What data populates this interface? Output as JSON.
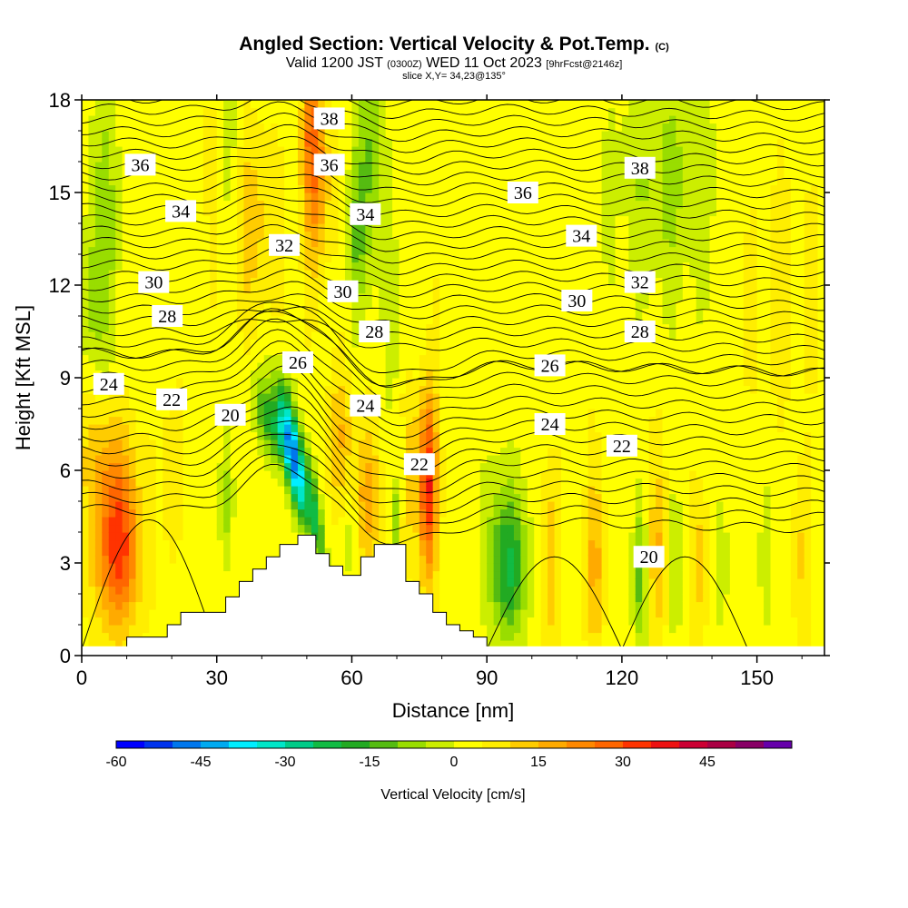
{
  "header": {
    "title_main": "Angled Section: Vertical Velocity & Pot.Temp.",
    "title_unit": "(C)",
    "subtitle_a": "Valid 1200 JST",
    "subtitle_b": "(0300Z)",
    "subtitle_c": "WED 11 Oct 2023",
    "subtitle_d": "[9hrFcst@2146z]",
    "slice": "slice X,Y= 34,23@135°"
  },
  "chart_data": {
    "type": "heatmap",
    "title": "Angled Section: Vertical Velocity & Pot.Temp. (C)",
    "xlabel": "Distance [nm]",
    "ylabel": "Height [Kft MSL]",
    "xlim": [
      0,
      165
    ],
    "ylim": [
      0,
      18
    ],
    "x_ticks": [
      0,
      30,
      60,
      90,
      120,
      150
    ],
    "y_ticks": [
      0,
      3,
      6,
      9,
      12,
      15,
      18
    ],
    "grid": false,
    "colorbar": {
      "label": "Vertical Velocity [cm/s]",
      "min": -60,
      "max": 55,
      "step": 5,
      "ticks": [
        -60,
        -45,
        -30,
        -15,
        0,
        15,
        30,
        45
      ],
      "colors": [
        "#0000ff",
        "#0033ee",
        "#0077ee",
        "#00aaf0",
        "#00eeff",
        "#00e6c8",
        "#00cc88",
        "#11bb44",
        "#22aa22",
        "#55bb11",
        "#99dd00",
        "#ccee00",
        "#ffff00",
        "#ffee00",
        "#ffcc00",
        "#ffaa00",
        "#ff8800",
        "#ff6600",
        "#ff3300",
        "#ee1111",
        "#cc0033",
        "#aa0044",
        "#880066",
        "#6600aa"
      ]
    },
    "contour_field": "Potential Temperature (C)",
    "contour_labels": [
      {
        "value": 38,
        "x": 55.0,
        "y": 17.4
      },
      {
        "value": 36,
        "x": 55.0,
        "y": 15.9
      },
      {
        "value": 34,
        "x": 63.0,
        "y": 14.3
      },
      {
        "value": 32,
        "x": 45.0,
        "y": 13.3
      },
      {
        "value": 30,
        "x": 58.0,
        "y": 11.8
      },
      {
        "value": 28,
        "x": 65.0,
        "y": 10.5
      },
      {
        "value": 26,
        "x": 48.0,
        "y": 9.5
      },
      {
        "value": 24,
        "x": 63.0,
        "y": 8.1
      },
      {
        "value": 22,
        "x": 75.0,
        "y": 6.2
      },
      {
        "value": 20,
        "x": 33.0,
        "y": 7.8
      },
      {
        "value": 36,
        "x": 13.0,
        "y": 15.9
      },
      {
        "value": 34,
        "x": 22.0,
        "y": 14.4
      },
      {
        "value": 30,
        "x": 16.0,
        "y": 12.1
      },
      {
        "value": 28,
        "x": 19.0,
        "y": 11.0
      },
      {
        "value": 24,
        "x": 6.0,
        "y": 8.8
      },
      {
        "value": 22,
        "x": 20.0,
        "y": 8.3
      },
      {
        "value": 38,
        "x": 124.0,
        "y": 15.8
      },
      {
        "value": 36,
        "x": 98.0,
        "y": 15.0
      },
      {
        "value": 34,
        "x": 111.0,
        "y": 13.6
      },
      {
        "value": 32,
        "x": 124.0,
        "y": 12.1
      },
      {
        "value": 30,
        "x": 110.0,
        "y": 11.5
      },
      {
        "value": 28,
        "x": 124.0,
        "y": 10.5
      },
      {
        "value": 26,
        "x": 104.0,
        "y": 9.4
      },
      {
        "value": 24,
        "x": 104.0,
        "y": 7.5
      },
      {
        "value": 22,
        "x": 120.0,
        "y": 6.8
      },
      {
        "value": 20,
        "x": 126.0,
        "y": 3.2
      }
    ],
    "velocity_extrema": [
      {
        "x": 48,
        "y": 5.8,
        "value": -45,
        "note": "downdraft"
      },
      {
        "x": 8,
        "y": 3.5,
        "value": 30
      },
      {
        "x": 77,
        "y": 5.5,
        "value": 30
      },
      {
        "x": 52,
        "y": 17.5,
        "value": 30
      }
    ],
    "terrain_profile": {
      "x": [
        10,
        16,
        19,
        22,
        32,
        35,
        38,
        41,
        44,
        48,
        52,
        55,
        58,
        62,
        65,
        68,
        72,
        75,
        78,
        81,
        84,
        87,
        90
      ],
      "height": [
        0.6,
        0.6,
        1.0,
        1.4,
        1.9,
        2.4,
        2.8,
        3.2,
        3.6,
        3.9,
        3.3,
        2.9,
        2.6,
        3.2,
        3.6,
        3.6,
        2.4,
        2.0,
        1.4,
        1.0,
        0.8,
        0.6,
        0.2
      ]
    }
  }
}
